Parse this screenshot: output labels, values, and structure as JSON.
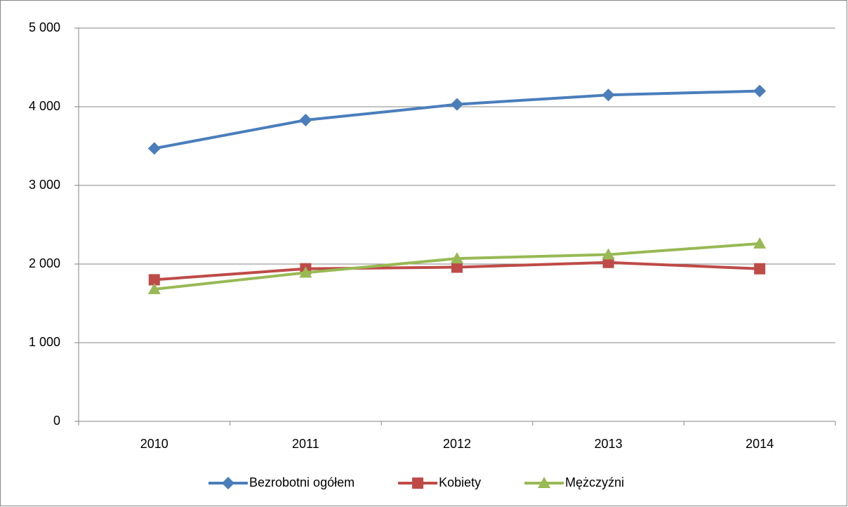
{
  "chart_data": {
    "type": "line",
    "categories": [
      "2010",
      "2011",
      "2012",
      "2013",
      "2014"
    ],
    "series": [
      {
        "name": "Bezrobotni ogółem",
        "color": "#4a7ebb",
        "marker": "diamond",
        "values": [
          3470,
          3830,
          4030,
          4150,
          4200
        ]
      },
      {
        "name": "Kobiety",
        "color": "#be4b48",
        "marker": "square",
        "values": [
          1800,
          1940,
          1960,
          2020,
          1940
        ]
      },
      {
        "name": "Mężczyźni",
        "color": "#98b954",
        "marker": "triangle",
        "values": [
          1680,
          1890,
          2070,
          2120,
          2260
        ]
      }
    ],
    "ylim": [
      0,
      5000
    ],
    "yticks": [
      0,
      {
        "value": 1000,
        "label": "1 000"
      },
      {
        "value": 2000,
        "label": "2 000"
      },
      {
        "value": 3000,
        "label": "3 000"
      },
      {
        "value": 4000,
        "label": "4 000"
      },
      {
        "value": 5000,
        "label": "5 000"
      }
    ],
    "grid": true,
    "legend": "bottom"
  }
}
